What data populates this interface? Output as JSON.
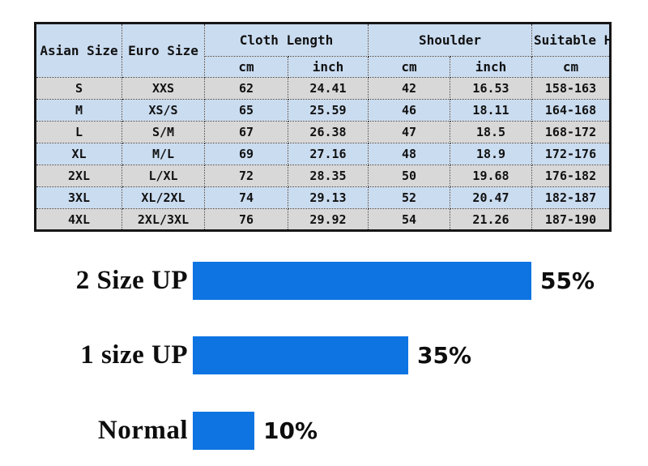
{
  "size_table": {
    "header": {
      "asian_size": "Asian\nSize",
      "euro_size": "Euro Size",
      "cloth_length": "Cloth Length",
      "shoulder": "Shoulder",
      "suitable_height": "Suitable\nHeight",
      "unit_cm": "cm",
      "unit_inch": "inch"
    },
    "rows": [
      [
        "S",
        "XXS",
        "62",
        "24.41",
        "42",
        "16.53",
        "158-163"
      ],
      [
        "M",
        "XS/S",
        "65",
        "25.59",
        "46",
        "18.11",
        "164-168"
      ],
      [
        "L",
        "S/M",
        "67",
        "26.38",
        "47",
        "18.5",
        "168-172"
      ],
      [
        "XL",
        "M/L",
        "69",
        "27.16",
        "48",
        "18.9",
        "172-176"
      ],
      [
        "2XL",
        "L/XL",
        "72",
        "28.35",
        "50",
        "19.68",
        "176-182"
      ],
      [
        "3XL",
        "XL/2XL",
        "74",
        "29.13",
        "52",
        "20.47",
        "182-187"
      ],
      [
        "4XL",
        "2XL/3XL",
        "76",
        "29.92",
        "54",
        "21.26",
        "187-190"
      ]
    ],
    "colors": {
      "header_bg": "#cadcf0",
      "row_gray": "#d8d8d8",
      "row_blue": "#cadcf0",
      "border": "#161616"
    }
  },
  "chart_data": {
    "type": "bar",
    "orientation": "horizontal",
    "categories": [
      "2 Size UP",
      "1 size UP",
      "Normal"
    ],
    "values": [
      55,
      35,
      10
    ],
    "value_labels": [
      "55%",
      "35%",
      "10%"
    ],
    "bar_color": "#0d74e2",
    "xlim": [
      0,
      100
    ],
    "legend": "none",
    "grid": "off"
  }
}
